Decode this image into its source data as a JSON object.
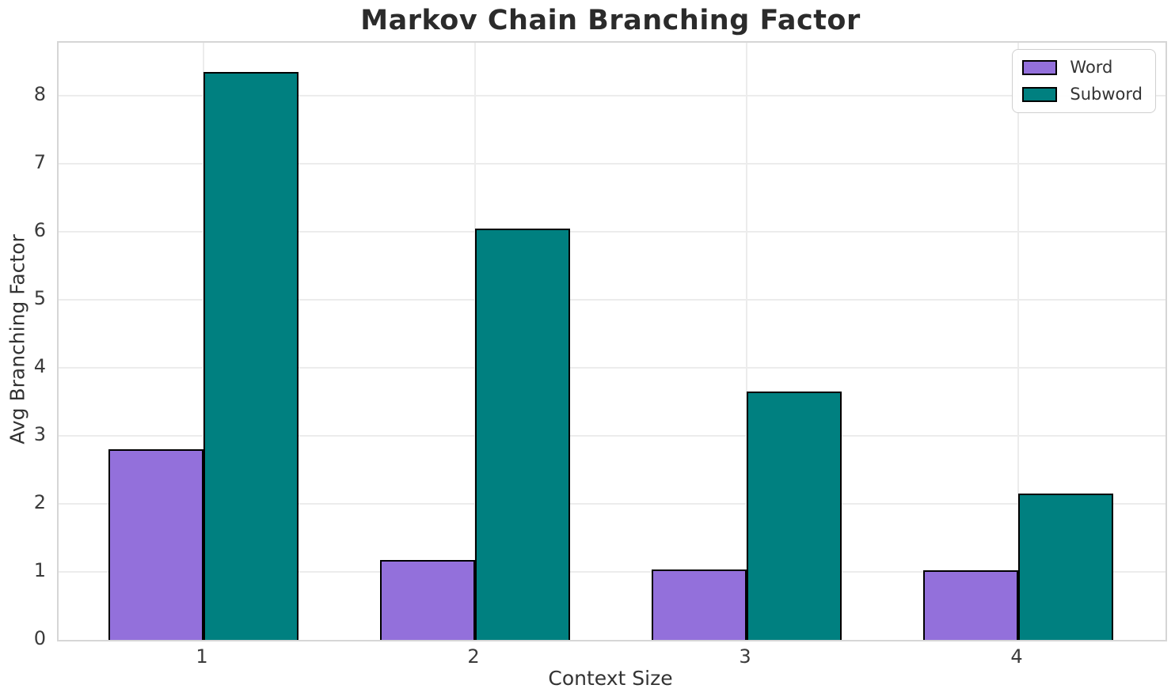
{
  "chart_data": {
    "type": "bar",
    "title": "Markov Chain Branching Factor",
    "xlabel": "Context Size",
    "ylabel": "Avg Branching Factor",
    "categories": [
      "1",
      "2",
      "3",
      "4"
    ],
    "series": [
      {
        "name": "Word",
        "color": "#9370DB",
        "values": [
          2.8,
          1.18,
          1.04,
          1.02
        ]
      },
      {
        "name": "Subword",
        "color": "#008080",
        "values": [
          8.35,
          6.05,
          3.65,
          2.15
        ]
      }
    ],
    "bar_edge_color": "#000000",
    "ylim": [
      0,
      8.78
    ],
    "yticks": [
      0,
      1,
      2,
      3,
      4,
      5,
      6,
      7,
      8
    ],
    "grid": "on",
    "gridline_color": "#ececec",
    "legend_position": "upper right"
  }
}
